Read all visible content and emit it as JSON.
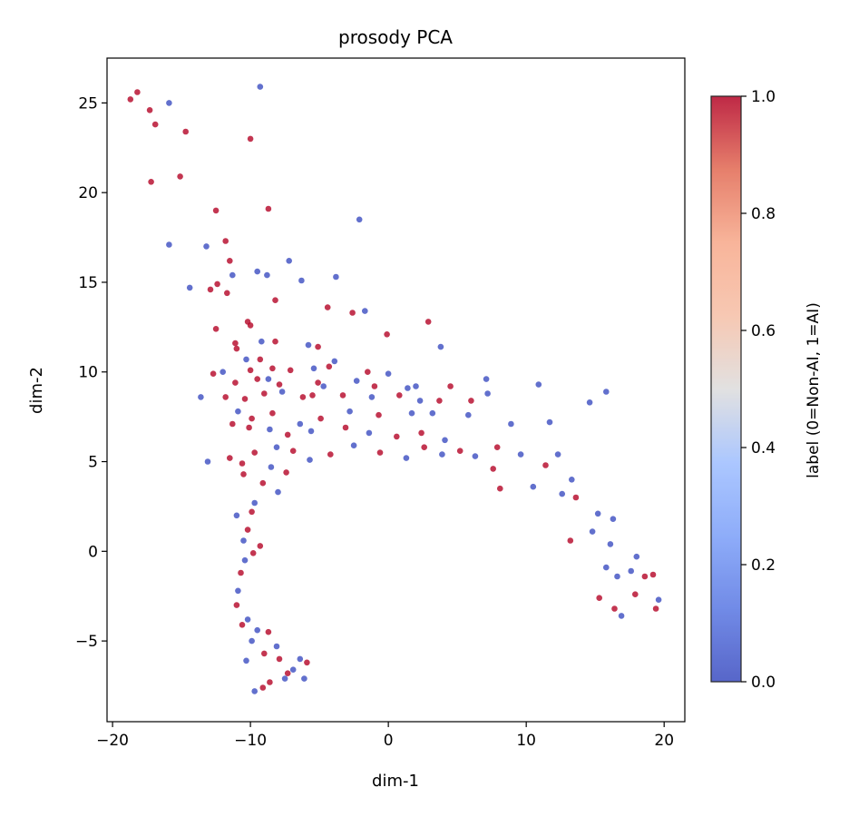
{
  "chart_data": {
    "type": "scatter",
    "title": "prosody PCA",
    "xlabel": "dim-1",
    "ylabel": "dim-2",
    "xlim": [
      -20.4,
      21.5
    ],
    "ylim": [
      -9.5,
      27.5
    ],
    "xticks": [
      -20,
      -10,
      0,
      10,
      20
    ],
    "xtick_labels": [
      "−20",
      "−10",
      "0",
      "10",
      "20"
    ],
    "yticks": [
      -5,
      0,
      5,
      10,
      15,
      20,
      25
    ],
    "ytick_labels": [
      "−5",
      "0",
      "5",
      "10",
      "15",
      "20",
      "25"
    ],
    "grid": false,
    "colormap": "coolwarm",
    "colorbar": {
      "label": "label (0=Non-AI, 1=AI)",
      "range": [
        0.0,
        1.0
      ],
      "ticks": [
        0.0,
        0.2,
        0.4,
        0.6,
        0.8,
        1.0
      ],
      "tick_labels": [
        "0.0",
        "0.2",
        "0.4",
        "0.6",
        "0.8",
        "1.0"
      ]
    },
    "marker_alpha": 0.8,
    "colors": {
      "label_0": "#3b4cc0",
      "label_1": "#b40426"
    },
    "points": [
      [
        -18.7,
        25.2,
        1
      ],
      [
        -18.2,
        25.6,
        1
      ],
      [
        -17.3,
        24.6,
        1
      ],
      [
        -16.9,
        23.8,
        1
      ],
      [
        -14.7,
        23.4,
        1
      ],
      [
        -15.9,
        25.0,
        0
      ],
      [
        -9.3,
        25.9,
        0
      ],
      [
        -10.0,
        23.0,
        1
      ],
      [
        -17.2,
        20.6,
        1
      ],
      [
        -15.1,
        20.9,
        1
      ],
      [
        -8.7,
        19.1,
        1
      ],
      [
        -2.1,
        18.5,
        0
      ],
      [
        -12.5,
        19.0,
        1
      ],
      [
        -15.9,
        17.1,
        0
      ],
      [
        -11.8,
        17.3,
        1
      ],
      [
        -13.2,
        17.0,
        0
      ],
      [
        -11.5,
        16.2,
        1
      ],
      [
        -7.2,
        16.2,
        0
      ],
      [
        -3.8,
        15.3,
        0
      ],
      [
        -9.5,
        15.6,
        0
      ],
      [
        -8.8,
        15.4,
        0
      ],
      [
        -11.3,
        15.4,
        0
      ],
      [
        -14.4,
        14.7,
        0
      ],
      [
        -12.9,
        14.6,
        1
      ],
      [
        -12.4,
        14.9,
        1
      ],
      [
        -6.3,
        15.1,
        0
      ],
      [
        -11.7,
        14.4,
        1
      ],
      [
        -8.2,
        14.0,
        1
      ],
      [
        -4.4,
        13.6,
        1
      ],
      [
        -2.6,
        13.3,
        1
      ],
      [
        -1.7,
        13.4,
        0
      ],
      [
        2.9,
        12.8,
        1
      ],
      [
        -10.2,
        12.8,
        1
      ],
      [
        -10.0,
        12.6,
        1
      ],
      [
        -12.5,
        12.4,
        1
      ],
      [
        -0.1,
        12.1,
        1
      ],
      [
        -9.2,
        11.7,
        0
      ],
      [
        -11.1,
        11.6,
        1
      ],
      [
        -8.2,
        11.7,
        1
      ],
      [
        -5.1,
        11.4,
        1
      ],
      [
        3.8,
        11.4,
        0
      ],
      [
        -11.0,
        11.3,
        1
      ],
      [
        -5.8,
        11.5,
        0
      ],
      [
        -3.9,
        10.6,
        0
      ],
      [
        -10.3,
        10.7,
        0
      ],
      [
        -9.3,
        10.7,
        1
      ],
      [
        -8.4,
        10.2,
        1
      ],
      [
        -7.1,
        10.1,
        1
      ],
      [
        -12.0,
        10.0,
        0
      ],
      [
        -10.0,
        10.1,
        1
      ],
      [
        -4.3,
        10.3,
        1
      ],
      [
        -1.5,
        10.0,
        1
      ],
      [
        0.0,
        9.9,
        0
      ],
      [
        -5.4,
        10.2,
        0
      ],
      [
        -12.7,
        9.9,
        1
      ],
      [
        -11.1,
        9.4,
        1
      ],
      [
        -9.5,
        9.6,
        1
      ],
      [
        -8.7,
        9.6,
        0
      ],
      [
        -7.9,
        9.3,
        1
      ],
      [
        -5.1,
        9.4,
        1
      ],
      [
        -4.7,
        9.2,
        0
      ],
      [
        -2.3,
        9.5,
        0
      ],
      [
        -1.0,
        9.2,
        1
      ],
      [
        1.4,
        9.1,
        0
      ],
      [
        2.0,
        9.2,
        0
      ],
      [
        7.1,
        9.6,
        0
      ],
      [
        10.9,
        9.3,
        0
      ],
      [
        4.5,
        9.2,
        1
      ],
      [
        -13.6,
        8.6,
        0
      ],
      [
        -11.8,
        8.6,
        1
      ],
      [
        -10.4,
        8.5,
        1
      ],
      [
        -9.0,
        8.8,
        1
      ],
      [
        -7.7,
        8.9,
        0
      ],
      [
        -6.2,
        8.6,
        1
      ],
      [
        -5.5,
        8.7,
        1
      ],
      [
        -3.3,
        8.7,
        1
      ],
      [
        -1.2,
        8.6,
        0
      ],
      [
        0.8,
        8.7,
        1
      ],
      [
        2.3,
        8.4,
        0
      ],
      [
        3.7,
        8.4,
        1
      ],
      [
        6.0,
        8.4,
        1
      ],
      [
        7.2,
        8.8,
        0
      ],
      [
        14.6,
        8.3,
        0
      ],
      [
        15.8,
        8.9,
        0
      ],
      [
        -10.9,
        7.8,
        0
      ],
      [
        -9.9,
        7.4,
        1
      ],
      [
        -8.4,
        7.7,
        1
      ],
      [
        -6.4,
        7.1,
        0
      ],
      [
        -4.9,
        7.4,
        1
      ],
      [
        -2.8,
        7.8,
        0
      ],
      [
        -0.7,
        7.6,
        1
      ],
      [
        1.7,
        7.7,
        0
      ],
      [
        3.2,
        7.7,
        0
      ],
      [
        5.8,
        7.6,
        0
      ],
      [
        8.9,
        7.1,
        0
      ],
      [
        11.7,
        7.2,
        0
      ],
      [
        -11.3,
        7.1,
        1
      ],
      [
        -10.1,
        6.9,
        1
      ],
      [
        -8.6,
        6.8,
        0
      ],
      [
        -7.3,
        6.5,
        1
      ],
      [
        -5.6,
        6.7,
        0
      ],
      [
        -3.1,
        6.9,
        1
      ],
      [
        -1.4,
        6.6,
        0
      ],
      [
        0.6,
        6.4,
        1
      ],
      [
        2.4,
        6.6,
        1
      ],
      [
        4.1,
        6.2,
        0
      ],
      [
        -11.5,
        5.2,
        1
      ],
      [
        -9.7,
        5.5,
        1
      ],
      [
        -8.1,
        5.8,
        0
      ],
      [
        -6.9,
        5.6,
        1
      ],
      [
        -13.1,
        5.0,
        0
      ],
      [
        -10.6,
        4.9,
        1
      ],
      [
        -5.7,
        5.1,
        0
      ],
      [
        -4.2,
        5.4,
        1
      ],
      [
        -2.5,
        5.9,
        0
      ],
      [
        -0.6,
        5.5,
        1
      ],
      [
        1.3,
        5.2,
        0
      ],
      [
        2.6,
        5.8,
        1
      ],
      [
        3.9,
        5.4,
        0
      ],
      [
        5.2,
        5.6,
        1
      ],
      [
        6.3,
        5.3,
        0
      ],
      [
        7.9,
        5.8,
        1
      ],
      [
        9.6,
        5.4,
        0
      ],
      [
        12.3,
        5.4,
        0
      ],
      [
        -10.5,
        4.3,
        1
      ],
      [
        -8.5,
        4.7,
        0
      ],
      [
        -7.4,
        4.4,
        1
      ],
      [
        7.6,
        4.6,
        1
      ],
      [
        11.4,
        4.8,
        1
      ],
      [
        13.3,
        4.0,
        0
      ],
      [
        -9.1,
        3.8,
        1
      ],
      [
        -8.0,
        3.3,
        0
      ],
      [
        8.1,
        3.5,
        1
      ],
      [
        10.5,
        3.6,
        0
      ],
      [
        12.6,
        3.2,
        0
      ],
      [
        13.6,
        3.0,
        1
      ],
      [
        -9.7,
        2.7,
        0
      ],
      [
        -9.9,
        2.2,
        1
      ],
      [
        15.2,
        2.1,
        0
      ],
      [
        -11.0,
        2.0,
        0
      ],
      [
        -10.2,
        1.2,
        1
      ],
      [
        16.3,
        1.8,
        0
      ],
      [
        -10.5,
        0.6,
        0
      ],
      [
        -9.3,
        0.3,
        1
      ],
      [
        14.8,
        1.1,
        0
      ],
      [
        -9.8,
        -0.1,
        1
      ],
      [
        13.2,
        0.6,
        1
      ],
      [
        16.1,
        0.4,
        0
      ],
      [
        -10.4,
        -0.5,
        0
      ],
      [
        18.0,
        -0.3,
        0
      ],
      [
        -10.7,
        -1.2,
        1
      ],
      [
        15.8,
        -0.9,
        0
      ],
      [
        17.6,
        -1.1,
        0
      ],
      [
        19.2,
        -1.3,
        1
      ],
      [
        16.6,
        -1.4,
        0
      ],
      [
        -10.9,
        -2.2,
        0
      ],
      [
        18.6,
        -1.4,
        1
      ],
      [
        17.9,
        -2.4,
        1
      ],
      [
        19.6,
        -2.7,
        0
      ],
      [
        -11.0,
        -3.0,
        1
      ],
      [
        15.3,
        -2.6,
        1
      ],
      [
        -10.2,
        -3.8,
        0
      ],
      [
        16.4,
        -3.2,
        1
      ],
      [
        19.4,
        -3.2,
        1
      ],
      [
        16.9,
        -3.6,
        0
      ],
      [
        -10.6,
        -4.1,
        1
      ],
      [
        -9.5,
        -4.4,
        0
      ],
      [
        -8.7,
        -4.5,
        1
      ],
      [
        -9.9,
        -5.0,
        0
      ],
      [
        -10.3,
        -6.1,
        0
      ],
      [
        -9.0,
        -5.7,
        1
      ],
      [
        -8.1,
        -5.3,
        0
      ],
      [
        -7.9,
        -6.0,
        1
      ],
      [
        -9.7,
        -7.8,
        0
      ],
      [
        -9.1,
        -7.6,
        1
      ],
      [
        -8.6,
        -7.3,
        1
      ],
      [
        -7.5,
        -7.1,
        0
      ],
      [
        -7.3,
        -6.8,
        1
      ],
      [
        -6.9,
        -6.6,
        0
      ],
      [
        -6.1,
        -7.1,
        0
      ],
      [
        -5.9,
        -6.2,
        1
      ],
      [
        -6.4,
        -6.0,
        0
      ]
    ]
  }
}
